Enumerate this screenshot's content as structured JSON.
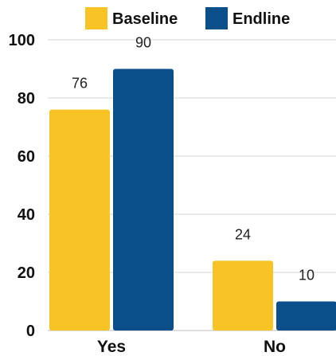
{
  "chart_data": {
    "type": "bar",
    "categories": [
      "Yes",
      "No"
    ],
    "series": [
      {
        "name": "Baseline",
        "values": [
          76,
          24
        ],
        "color": "#F7C325"
      },
      {
        "name": "Endline",
        "values": [
          90,
          10
        ],
        "color": "#0A4F8A"
      }
    ],
    "yticks": [
      0,
      20,
      40,
      60,
      80,
      100
    ],
    "ylim": [
      0,
      100
    ],
    "grid": true,
    "legend_position": "top",
    "title": "",
    "xlabel": "",
    "ylabel": ""
  }
}
